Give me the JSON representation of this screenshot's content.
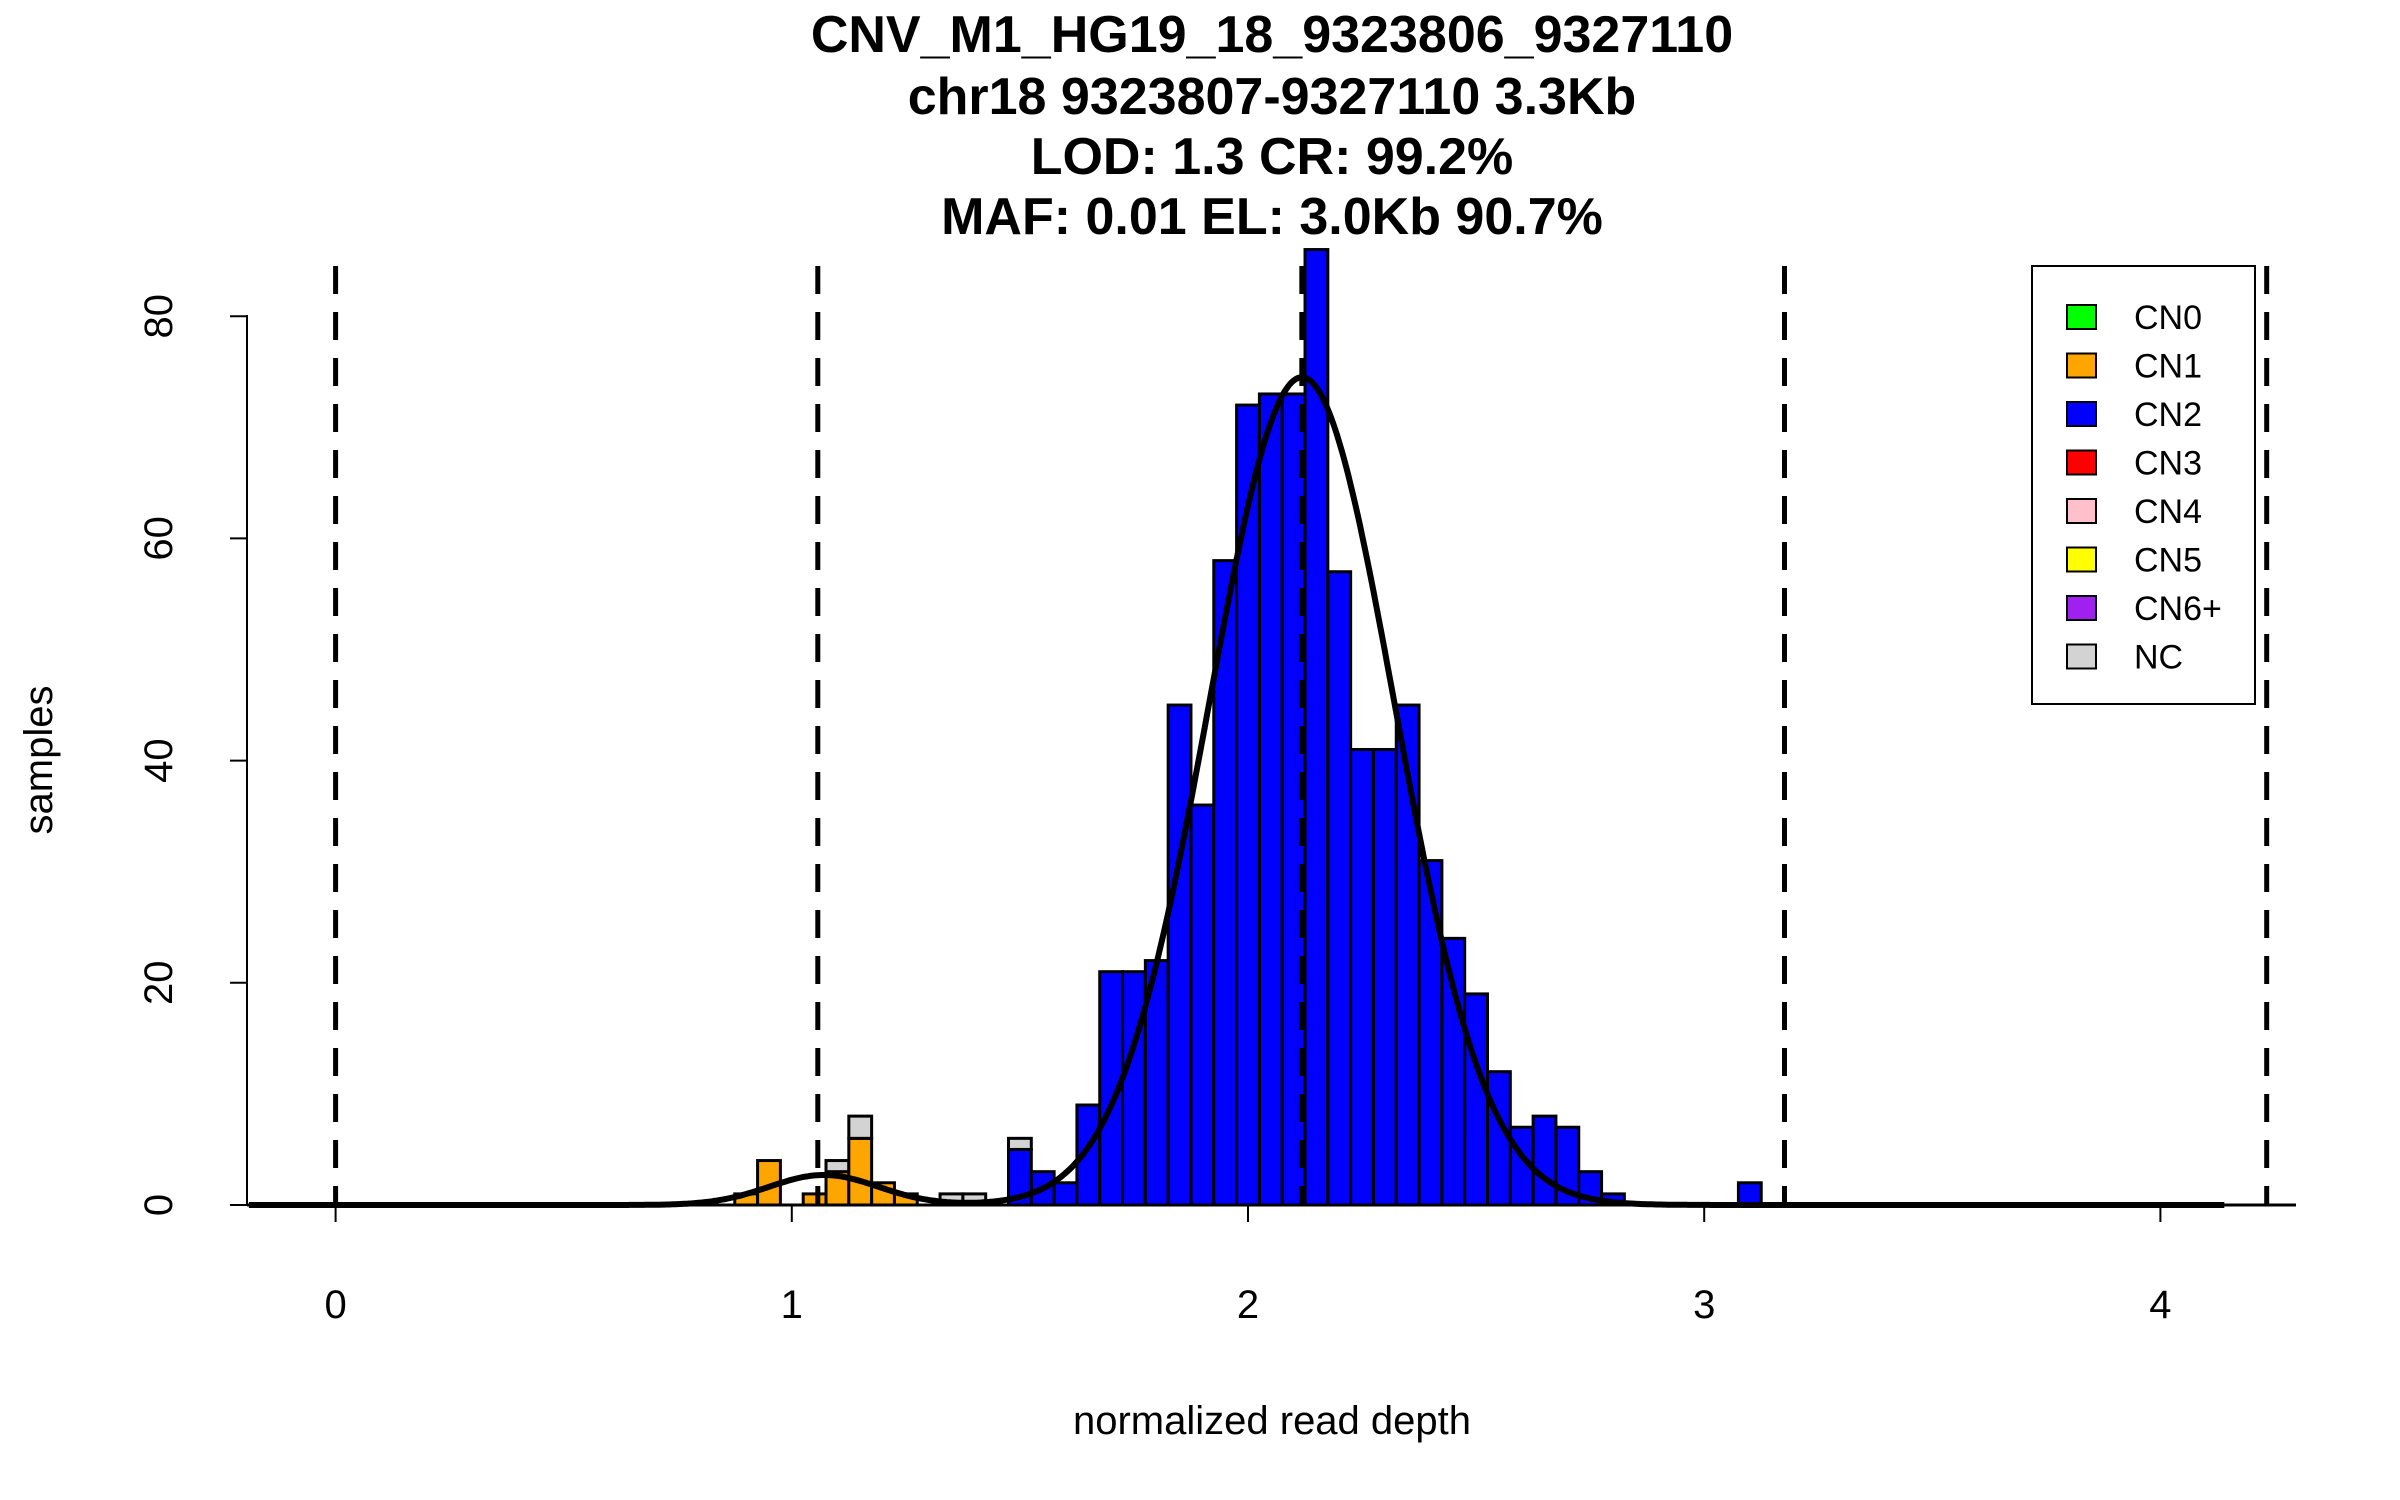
{
  "chart_data": {
    "type": "bar",
    "subtype": "stacked-histogram",
    "title": [
      "CNV_M1_HG19_18_9323806_9327110",
      "chr18 9323807-9327110 3.3Kb",
      "LOD: 1.3 CR: 99.2%",
      "MAF: 0.01 EL: 3.0Kb 90.7%"
    ],
    "xlabel": "normalized read depth",
    "ylabel": "samples",
    "xlim": [
      -0.2,
      4.3
    ],
    "ylim": [
      0,
      86
    ],
    "xticks": [
      "0",
      "1",
      "2",
      "3",
      "4"
    ],
    "yticks": [
      "0",
      "20",
      "40",
      "60",
      "80"
    ],
    "bin_width": 0.05,
    "legend": {
      "placement": "top-right",
      "entries": [
        {
          "label": "CN0",
          "color": "#00ff00"
        },
        {
          "label": "CN1",
          "color": "#ffa500"
        },
        {
          "label": "CN2",
          "color": "#0000ff"
        },
        {
          "label": "CN3",
          "color": "#ff0000"
        },
        {
          "label": "CN4",
          "color": "#ffc0cb"
        },
        {
          "label": "CN5",
          "color": "#ffff00"
        },
        {
          "label": "CN6+",
          "color": "#a020f0"
        },
        {
          "label": "NC",
          "color": "#d3d3d3"
        }
      ]
    },
    "bins": [
      {
        "start": 0.875,
        "CN1": 1,
        "CN2": 0,
        "NC": 0
      },
      {
        "start": 0.925,
        "CN1": 4,
        "CN2": 0,
        "NC": 0
      },
      {
        "start": 1.025,
        "CN1": 1,
        "CN2": 0,
        "NC": 0
      },
      {
        "start": 1.075,
        "CN1": 3,
        "CN2": 0,
        "NC": 1
      },
      {
        "start": 1.125,
        "CN1": 6,
        "CN2": 0,
        "NC": 2
      },
      {
        "start": 1.175,
        "CN1": 2,
        "CN2": 0,
        "NC": 0
      },
      {
        "start": 1.225,
        "CN1": 1,
        "CN2": 0,
        "NC": 0
      },
      {
        "start": 1.325,
        "CN1": 0,
        "CN2": 0,
        "NC": 1
      },
      {
        "start": 1.375,
        "CN1": 0,
        "CN2": 0,
        "NC": 1
      },
      {
        "start": 1.475,
        "CN1": 0,
        "CN2": 5,
        "NC": 1
      },
      {
        "start": 1.525,
        "CN1": 0,
        "CN2": 3,
        "NC": 0
      },
      {
        "start": 1.575,
        "CN1": 0,
        "CN2": 2,
        "NC": 0
      },
      {
        "start": 1.625,
        "CN1": 0,
        "CN2": 9,
        "NC": 0
      },
      {
        "start": 1.675,
        "CN1": 0,
        "CN2": 21,
        "NC": 0
      },
      {
        "start": 1.725,
        "CN1": 0,
        "CN2": 21,
        "NC": 0
      },
      {
        "start": 1.775,
        "CN1": 0,
        "CN2": 22,
        "NC": 0
      },
      {
        "start": 1.825,
        "CN1": 0,
        "CN2": 45,
        "NC": 0
      },
      {
        "start": 1.875,
        "CN1": 0,
        "CN2": 36,
        "NC": 0
      },
      {
        "start": 1.925,
        "CN1": 0,
        "CN2": 58,
        "NC": 0
      },
      {
        "start": 1.975,
        "CN1": 0,
        "CN2": 72,
        "NC": 0
      },
      {
        "start": 2.025,
        "CN1": 0,
        "CN2": 73,
        "NC": 0
      },
      {
        "start": 2.075,
        "CN1": 0,
        "CN2": 73,
        "NC": 0
      },
      {
        "start": 2.125,
        "CN1": 0,
        "CN2": 86,
        "NC": 0
      },
      {
        "start": 2.175,
        "CN1": 0,
        "CN2": 57,
        "NC": 0
      },
      {
        "start": 2.225,
        "CN1": 0,
        "CN2": 41,
        "NC": 0
      },
      {
        "start": 2.275,
        "CN1": 0,
        "CN2": 41,
        "NC": 0
      },
      {
        "start": 2.325,
        "CN1": 0,
        "CN2": 45,
        "NC": 0
      },
      {
        "start": 2.375,
        "CN1": 0,
        "CN2": 31,
        "NC": 0
      },
      {
        "start": 2.425,
        "CN1": 0,
        "CN2": 24,
        "NC": 0
      },
      {
        "start": 2.475,
        "CN1": 0,
        "CN2": 19,
        "NC": 0
      },
      {
        "start": 2.525,
        "CN1": 0,
        "CN2": 12,
        "NC": 0
      },
      {
        "start": 2.575,
        "CN1": 0,
        "CN2": 7,
        "NC": 0
      },
      {
        "start": 2.625,
        "CN1": 0,
        "CN2": 8,
        "NC": 0
      },
      {
        "start": 2.675,
        "CN1": 0,
        "CN2": 7,
        "NC": 0
      },
      {
        "start": 2.725,
        "CN1": 0,
        "CN2": 3,
        "NC": 0
      },
      {
        "start": 2.775,
        "CN1": 0,
        "CN2": 1,
        "NC": 0
      },
      {
        "start": 3.075,
        "CN1": 0,
        "CN2": 2,
        "NC": 0
      }
    ],
    "dashed_lines_x": [
      0,
      1.057,
      2.118,
      3.176,
      4.233
    ],
    "fit_curves": [
      {
        "name": "CN1",
        "mean": 1.07,
        "sd": 0.12,
        "peak": 2.7
      },
      {
        "name": "CN2",
        "mean": 2.118,
        "sd": 0.203,
        "peak": 74.5
      }
    ]
  }
}
